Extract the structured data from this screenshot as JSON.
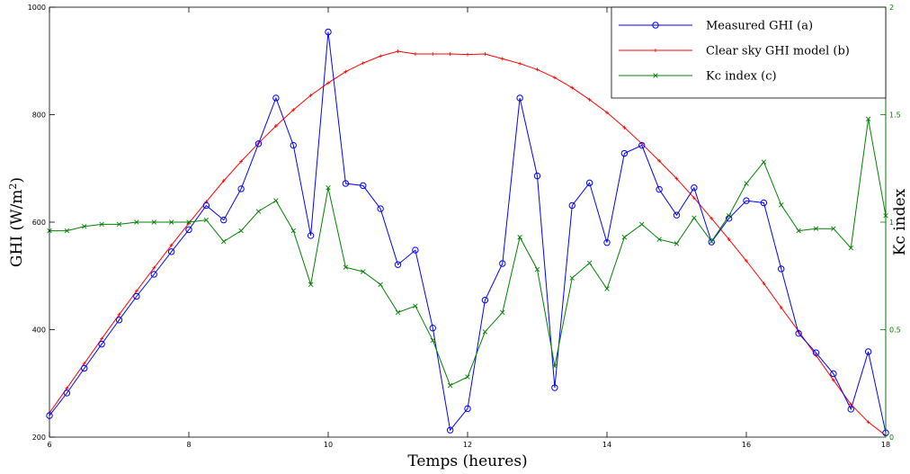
{
  "chart_data": {
    "type": "line",
    "title": "",
    "xlabel": "Temps (heures)",
    "ylabel": "GHI (W/m",
    "ylabel_sup": "2",
    "ylabel_end": ")",
    "y2label": "Kc index",
    "xlim": [
      6,
      18
    ],
    "ylim": [
      200,
      1000
    ],
    "y2lim": [
      0,
      2
    ],
    "x_ticks": [
      "6",
      "8",
      "10",
      "12",
      "14",
      "16",
      "18"
    ],
    "y_ticks": [
      "200",
      "400",
      "600",
      "800",
      "1000"
    ],
    "y2_ticks": [
      "0",
      "0.5",
      "1",
      "1.5",
      "2"
    ],
    "x_tick_values": [
      6,
      8,
      10,
      12,
      14,
      16,
      18
    ],
    "y_tick_values": [
      200,
      400,
      600,
      800,
      1000
    ],
    "y2_tick_values": [
      0,
      0.5,
      1,
      1.5,
      2
    ],
    "grid": false,
    "legend_position": "top-right",
    "series": [
      {
        "name": "Measured GHI (a)",
        "axis": "left",
        "color": "#0000ff",
        "marker": "circle",
        "x": [
          6,
          6.25,
          6.5,
          6.75,
          7,
          7.25,
          7.5,
          7.75,
          8,
          8.25,
          8.5,
          8.75,
          9,
          9.25,
          9.5,
          9.75,
          10,
          10.25,
          10.5,
          10.75,
          11,
          11.25,
          11.5,
          11.75,
          12,
          12.25,
          12.5,
          12.75,
          13,
          13.25,
          13.5,
          13.75,
          14,
          14.25,
          14.5,
          14.75,
          15,
          15.25,
          15.5,
          15.75,
          16,
          16.25,
          16.5,
          16.75,
          17,
          17.25,
          17.5,
          17.75,
          18
        ],
        "y": [
          240,
          282,
          328,
          373,
          418,
          462,
          503,
          545,
          586,
          631,
          604,
          662,
          746,
          831,
          743,
          575,
          954,
          672,
          668,
          625,
          521,
          548,
          403,
          213,
          253,
          455,
          523,
          831,
          686,
          292,
          631,
          673,
          562,
          728,
          743,
          661,
          613,
          664,
          563,
          607,
          640,
          636,
          513,
          393,
          357,
          318,
          252,
          359,
          208
        ]
      },
      {
        "name": "Clear sky GHI model (b)",
        "axis": "left",
        "color": "#ff0000",
        "marker": "plus",
        "x": [
          6,
          6.25,
          6.5,
          6.75,
          7,
          7.25,
          7.5,
          7.75,
          8,
          8.25,
          8.5,
          8.75,
          9,
          9.25,
          9.5,
          9.75,
          10,
          10.25,
          10.5,
          10.75,
          11,
          11.25,
          11.5,
          11.75,
          12,
          12.25,
          12.5,
          12.75,
          13,
          13.25,
          13.5,
          13.75,
          14,
          14.25,
          14.5,
          14.75,
          15,
          15.25,
          15.5,
          15.75,
          16,
          16.25,
          16.5,
          16.75,
          17,
          17.25,
          17.5,
          17.75,
          18
        ],
        "y": [
          245,
          291,
          337,
          383,
          428,
          472,
          515,
          557,
          598,
          638,
          677,
          713,
          747,
          779,
          809,
          836,
          859,
          880,
          896,
          909,
          918,
          913,
          913,
          913,
          912,
          913,
          904,
          895,
          884,
          869,
          850,
          828,
          804,
          776,
          746,
          714,
          681,
          645,
          607,
          568,
          528,
          486,
          441,
          397,
          352,
          306,
          261,
          228,
          203
        ]
      },
      {
        "name": "Kc index (c)",
        "axis": "right",
        "color": "#008000",
        "marker": "x",
        "x": [
          6,
          6.25,
          6.5,
          6.75,
          7,
          7.25,
          7.5,
          7.75,
          8,
          8.25,
          8.5,
          8.75,
          9,
          9.25,
          9.5,
          9.75,
          10,
          10.25,
          10.5,
          10.75,
          11,
          11.25,
          11.5,
          11.75,
          12,
          12.25,
          12.5,
          12.75,
          13,
          13.25,
          13.5,
          13.75,
          14,
          14.25,
          14.5,
          14.75,
          15,
          15.25,
          15.5,
          15.75,
          16,
          16.25,
          16.5,
          16.75,
          17,
          17.25,
          17.5,
          17.75,
          18
        ],
        "y": [
          0.96,
          0.96,
          0.98,
          0.99,
          0.99,
          1.0,
          1.0,
          1.0,
          1.0,
          1.01,
          0.91,
          0.96,
          1.05,
          1.1,
          0.96,
          0.71,
          1.16,
          0.79,
          0.77,
          0.71,
          0.58,
          0.61,
          0.45,
          0.24,
          0.28,
          0.49,
          0.58,
          0.93,
          0.78,
          0.33,
          0.74,
          0.81,
          0.69,
          0.93,
          0.99,
          0.92,
          0.9,
          1.02,
          0.91,
          1.03,
          1.18,
          1.28,
          1.08,
          0.96,
          0.97,
          0.97,
          0.88,
          1.48,
          1.03
        ]
      }
    ]
  }
}
